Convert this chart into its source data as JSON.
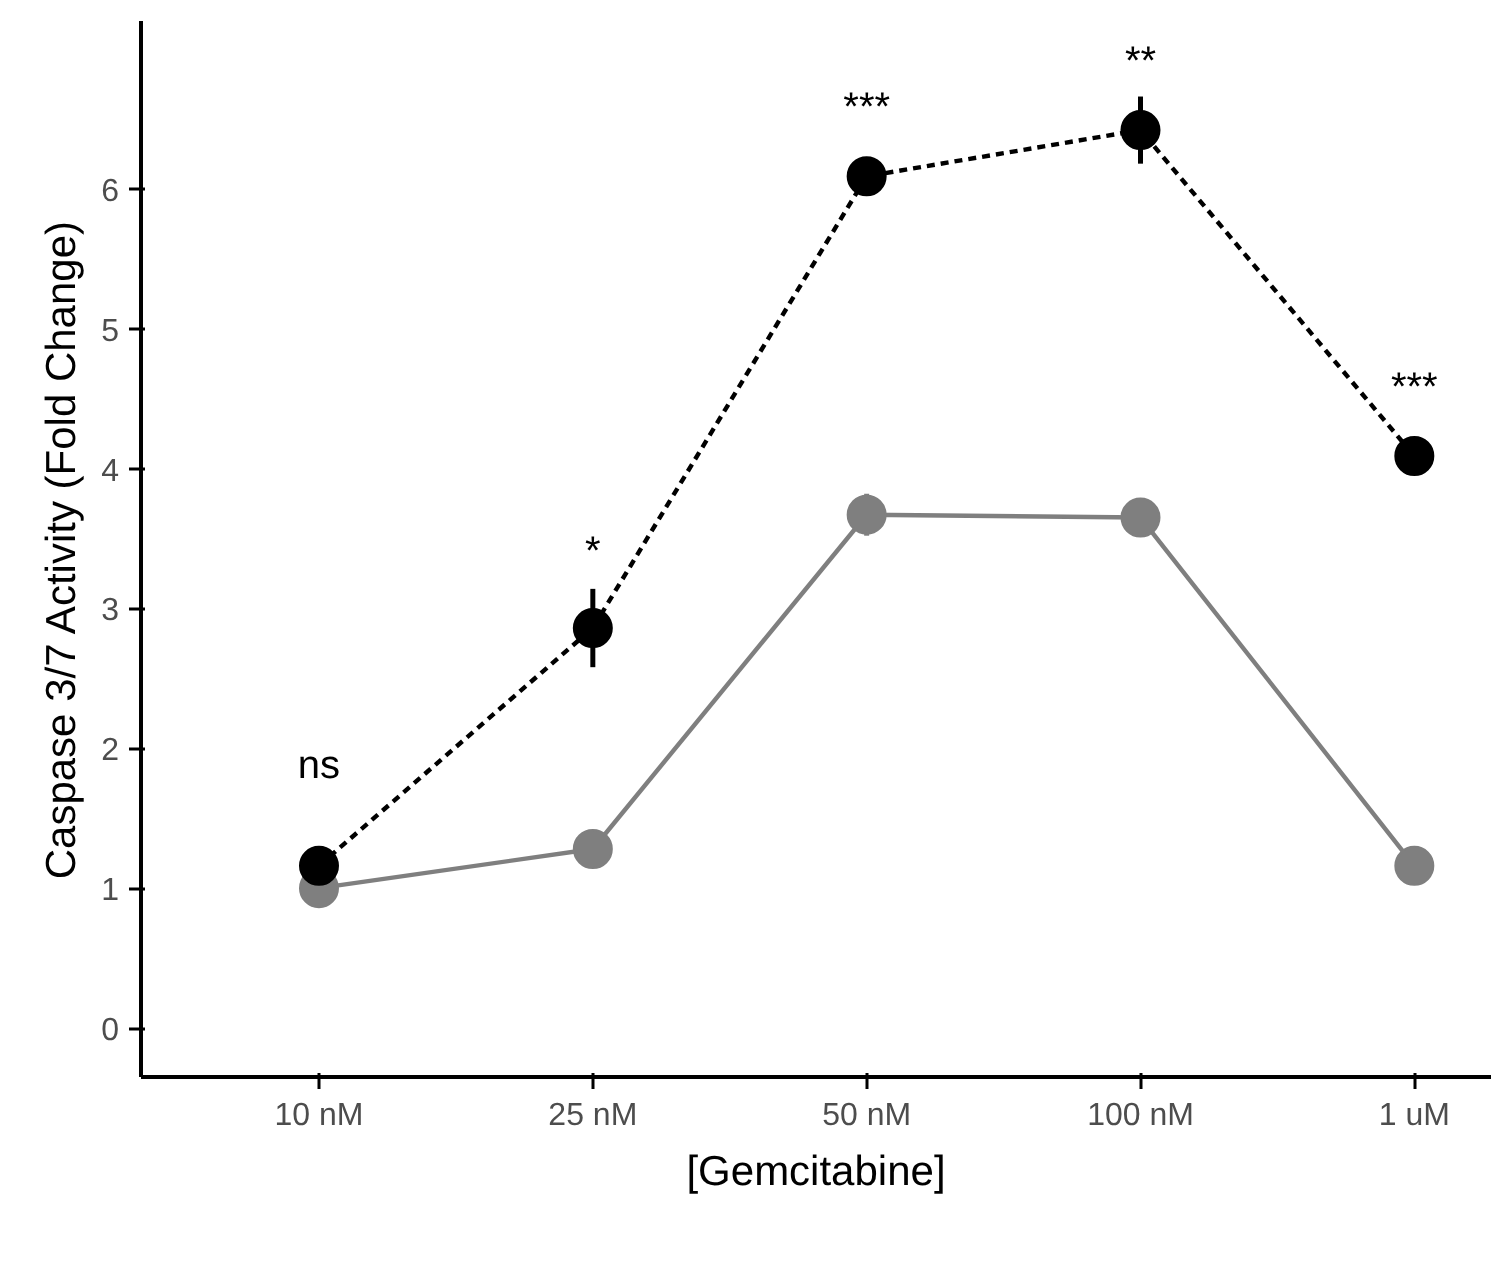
{
  "chart_data": {
    "type": "line",
    "xlabel": "[Gemcitabine]",
    "ylabel": "Caspase 3/7 Activity (Fold Change)",
    "categories": [
      "10 nM",
      "25 nM",
      "50 nM",
      "100 nM",
      "1 uM"
    ],
    "series": [
      {
        "color": "#7f7f7f",
        "values": [
          1.0,
          1.28,
          3.67,
          3.65,
          1.16
        ],
        "errors": [
          null,
          null,
          0.15,
          null,
          null
        ],
        "line_style": "solid"
      },
      {
        "color": "#000000",
        "values": [
          1.16,
          2.86,
          6.09,
          6.42,
          4.09
        ],
        "errors": [
          null,
          0.28,
          null,
          0.24,
          null
        ],
        "line_style": "dashed"
      }
    ],
    "ylim": [
      -0.35,
      7.2
    ],
    "yticks": [
      0,
      1,
      2,
      3,
      4,
      5,
      6
    ],
    "grid": false,
    "marker": "circle",
    "annotations": [
      "ns",
      "*",
      "***",
      "**",
      "***"
    ]
  }
}
